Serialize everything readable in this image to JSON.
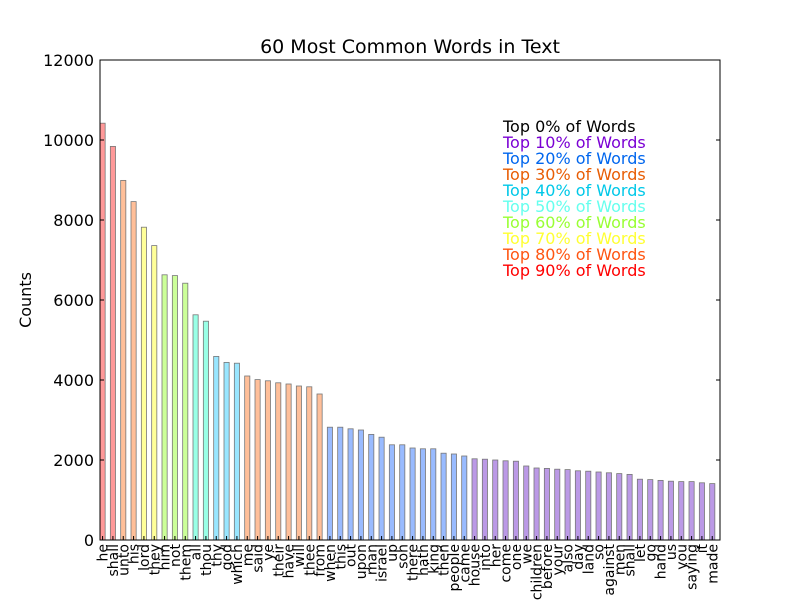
{
  "chart_data": {
    "type": "bar",
    "title": "60 Most Common Words in Text",
    "xlabel": "",
    "ylabel": "Counts",
    "ylim": [
      0,
      12000
    ],
    "yticks": [
      0,
      2000,
      4000,
      6000,
      8000,
      10000,
      12000
    ],
    "grid": false,
    "legend_position": "top-right",
    "categories": [
      "he",
      "shall",
      "unto",
      "his",
      "lord",
      "they",
      "him",
      "not",
      "them",
      "all",
      "thou",
      "thy",
      "god",
      "which",
      "me",
      "said",
      "ye",
      "their",
      "have",
      "will",
      "thee",
      "from",
      "when",
      "this",
      "out",
      "upon",
      "man",
      "israel",
      "up",
      "son",
      "there",
      "hath",
      "king",
      "then",
      "people",
      "came",
      "house",
      "into",
      "her",
      "come",
      "one",
      "we",
      "children",
      "before",
      "your",
      "also",
      "day",
      "land",
      "so",
      "against",
      "men",
      "shall",
      "let",
      "go",
      "hand",
      "us",
      "you",
      "saying",
      "it",
      "made"
    ],
    "values": [
      10420,
      9840,
      8990,
      8460,
      7820,
      7360,
      6630,
      6610,
      6420,
      5630,
      5470,
      4590,
      4440,
      4420,
      4100,
      4010,
      3980,
      3930,
      3900,
      3850,
      3830,
      3650,
      2820,
      2820,
      2780,
      2750,
      2640,
      2570,
      2380,
      2380,
      2300,
      2280,
      2280,
      2170,
      2150,
      2100,
      2030,
      2020,
      2000,
      1980,
      1970,
      1850,
      1800,
      1790,
      1770,
      1760,
      1730,
      1720,
      1700,
      1680,
      1660,
      1640,
      1520,
      1510,
      1490,
      1470,
      1460,
      1460,
      1430,
      1410
    ],
    "legend": [
      {
        "label": "Top 0% of Words",
        "color": "#000000"
      },
      {
        "label": "Top 10% of Words",
        "color": "#7B00D4"
      },
      {
        "label": "Top 20% of Words",
        "color": "#0066EE"
      },
      {
        "label": "Top 30% of Words",
        "color": "#E85D04"
      },
      {
        "label": "Top 40% of Words",
        "color": "#00C8E8"
      },
      {
        "label": "Top 50% of Words",
        "color": "#66FFEE"
      },
      {
        "label": "Top 60% of Words",
        "color": "#99FF33"
      },
      {
        "label": "Top 70% of Words",
        "color": "#FFFF33"
      },
      {
        "label": "Top 80% of Words",
        "color": "#FF5511"
      },
      {
        "label": "Top 90% of Words",
        "color": "#FF0000"
      }
    ],
    "bar_groups": [
      {
        "count": 2,
        "color": "#FF9999"
      },
      {
        "count": 2,
        "color": "#FFBF99"
      },
      {
        "count": 2,
        "color": "#FFFF99"
      },
      {
        "count": 3,
        "color": "#CCFF99"
      },
      {
        "count": 2,
        "color": "#99FFE6"
      },
      {
        "count": 3,
        "color": "#99E6FF"
      },
      {
        "count": 8,
        "color": "#FFBF99"
      },
      {
        "count": 14,
        "color": "#99BBFF"
      },
      {
        "count": 24,
        "color": "#BB99E6"
      }
    ]
  }
}
